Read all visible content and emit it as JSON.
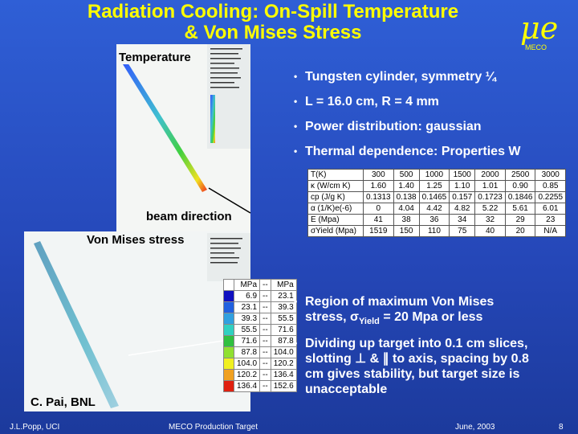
{
  "header": {
    "title": [
      "Radiation Cooling: On-Spill Temperature",
      "& Von Mises Stress"
    ],
    "logo": "MECO"
  },
  "figure_labels": {
    "temperature": "Temperature",
    "beam_direction": "beam direction",
    "von_mises": "Von Mises stress",
    "credit": "C. Pai, BNL"
  },
  "bullets_top": [
    "Tungsten cylinder, symmetry ¼",
    "L = 16.0 cm, R = 4 mm",
    "Power distribution: gaussian",
    "Thermal dependence: Properties W"
  ],
  "properties_table": {
    "rows": [
      [
        "T(K)",
        "300",
        "500",
        "1000",
        "1500",
        "2000",
        "2500",
        "3000"
      ],
      [
        "κ (W/cm K)",
        "1.60",
        "1.40",
        "1.25",
        "1.10",
        "1.01",
        "0.90",
        "0.85"
      ],
      [
        "cp (J/g K)",
        "0.1313",
        "0.138",
        "0.1465",
        "0.157",
        "0.1723",
        "0.1846",
        "0.2255"
      ],
      [
        "α (1/K)e(-6)",
        "0",
        "4.04",
        "4.42",
        "4.82",
        "5.22",
        "5.61",
        "6.01"
      ],
      [
        "E (Mpa)",
        "41",
        "38",
        "36",
        "34",
        "32",
        "29",
        "23"
      ],
      [
        "σYield (Mpa)",
        "1519",
        "150",
        "110",
        "75",
        "40",
        "20",
        "N/A"
      ]
    ]
  },
  "stress_legend": {
    "header": [
      "MPa",
      "--",
      "MPa"
    ],
    "rows": [
      [
        "6.9",
        "--",
        "23.1"
      ],
      [
        "23.1",
        "--",
        "39.3"
      ],
      [
        "39.3",
        "--",
        "55.5"
      ],
      [
        "55.5",
        "--",
        "71.6"
      ],
      [
        "71.6",
        "--",
        "87.8"
      ],
      [
        "87.8",
        "--",
        "104.0"
      ],
      [
        "104.0",
        "--",
        "120.2"
      ],
      [
        "120.2",
        "--",
        "136.4"
      ],
      [
        "136.4",
        "--",
        "152.6"
      ]
    ]
  },
  "bullets_bottom": [
    [
      "Region of maximum Von Mises stress, σ",
      "Yield",
      " = 20 Mpa or less"
    ],
    [
      "Dividing up target into 0.1 cm slices, slotting ⊥ & ∥ to axis, spacing by 0.8 cm gives stability, but target size is unacceptable"
    ]
  ],
  "footer": {
    "author": "J.L.Popp, UCI",
    "center": "MECO Production Target",
    "date": "June, 2003",
    "page": "8"
  }
}
